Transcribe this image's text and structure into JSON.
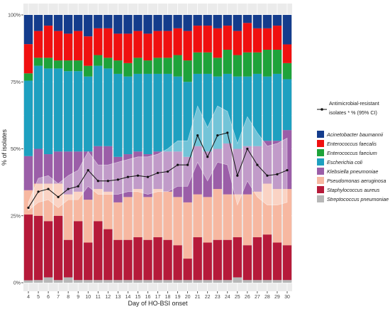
{
  "chart_data": {
    "type": "bar",
    "stacked": true,
    "xlabel": "Day of HO-BSI onset",
    "ylabel": "% of isolates",
    "ylim": [
      0,
      1
    ],
    "yticks": [
      "0%",
      "25%",
      "50%",
      "75%",
      "100%"
    ],
    "grid": true,
    "legend_position": "right",
    "categories": [
      "4",
      "5",
      "6",
      "7",
      "8",
      "9",
      "10",
      "11",
      "12",
      "13",
      "14",
      "15",
      "16",
      "17",
      "18",
      "19",
      "20",
      "21",
      "22",
      "23",
      "24",
      "25",
      "26",
      "27",
      "28",
      "29",
      "30"
    ],
    "series": [
      {
        "name": "Streptococcus pneumoniae",
        "color": "#b7b7b7",
        "values": [
          0.01,
          0.01,
          0.02,
          0.01,
          0.02,
          0.01,
          0.01,
          0.01,
          0.01,
          0.01,
          0.01,
          0.01,
          0.01,
          0.01,
          0.01,
          0.01,
          0.01,
          0.01,
          0.01,
          0.01,
          0.01,
          0.02,
          0.01,
          0.01,
          0.01,
          0.01,
          0.01
        ]
      },
      {
        "name": "Staphylococcus aureus",
        "color": "#b61a3a",
        "values": [
          0.27,
          0.24,
          0.21,
          0.24,
          0.14,
          0.22,
          0.14,
          0.22,
          0.19,
          0.15,
          0.15,
          0.16,
          0.15,
          0.16,
          0.15,
          0.13,
          0.08,
          0.16,
          0.14,
          0.15,
          0.15,
          0.15,
          0.13,
          0.16,
          0.17,
          0.14,
          0.13
        ]
      },
      {
        "name": "Pseudomonas aeruginosa",
        "color": "#f7b8a1",
        "values": [
          0.1,
          0.12,
          0.14,
          0.12,
          0.17,
          0.11,
          0.16,
          0.12,
          0.14,
          0.14,
          0.16,
          0.18,
          0.16,
          0.18,
          0.18,
          0.18,
          0.21,
          0.16,
          0.17,
          0.19,
          0.17,
          0.16,
          0.19,
          0.17,
          0.19,
          0.2,
          0.21
        ]
      },
      {
        "name": "Klebsiella pneumoniae",
        "color": "#9b5ea8",
        "values": [
          0.14,
          0.13,
          0.11,
          0.12,
          0.16,
          0.15,
          0.18,
          0.16,
          0.17,
          0.17,
          0.16,
          0.14,
          0.16,
          0.14,
          0.15,
          0.17,
          0.17,
          0.18,
          0.17,
          0.15,
          0.19,
          0.17,
          0.18,
          0.17,
          0.16,
          0.18,
          0.22
        ]
      },
      {
        "name": "Escherichia coli",
        "color": "#1ea0c0",
        "values": [
          0.31,
          0.31,
          0.32,
          0.31,
          0.3,
          0.3,
          0.28,
          0.3,
          0.29,
          0.31,
          0.29,
          0.29,
          0.3,
          0.29,
          0.29,
          0.28,
          0.28,
          0.27,
          0.29,
          0.27,
          0.26,
          0.27,
          0.26,
          0.27,
          0.24,
          0.25,
          0.19
        ]
      },
      {
        "name": "Enterococcus faecium",
        "color": "#1ea33a",
        "values": [
          0.03,
          0.03,
          0.04,
          0.03,
          0.04,
          0.04,
          0.04,
          0.04,
          0.04,
          0.05,
          0.05,
          0.06,
          0.05,
          0.06,
          0.06,
          0.08,
          0.08,
          0.08,
          0.08,
          0.07,
          0.09,
          0.08,
          0.09,
          0.08,
          0.1,
          0.09,
          0.06
        ]
      },
      {
        "name": "Enterococcus faecalis",
        "color": "#f01010",
        "values": [
          0.12,
          0.1,
          0.12,
          0.11,
          0.1,
          0.11,
          0.11,
          0.1,
          0.11,
          0.1,
          0.11,
          0.1,
          0.1,
          0.1,
          0.1,
          0.1,
          0.11,
          0.1,
          0.1,
          0.11,
          0.09,
          0.09,
          0.11,
          0.09,
          0.08,
          0.09,
          0.07
        ]
      },
      {
        "name": "Acinetobacter baumannii",
        "color": "#143c8c",
        "values": [
          0.12,
          0.06,
          0.04,
          0.06,
          0.07,
          0.06,
          0.08,
          0.05,
          0.05,
          0.07,
          0.07,
          0.06,
          0.07,
          0.06,
          0.06,
          0.05,
          0.06,
          0.04,
          0.04,
          0.05,
          0.04,
          0.06,
          0.03,
          0.05,
          0.05,
          0.04,
          0.11
        ]
      }
    ],
    "amr_line": {
      "name": "Antimicrobial-resistant isolates * % (95% CI)",
      "values": [
        0.28,
        0.34,
        0.35,
        0.32,
        0.35,
        0.36,
        0.42,
        0.38,
        0.38,
        0.385,
        0.395,
        0.4,
        0.395,
        0.41,
        0.415,
        0.44,
        0.44,
        0.55,
        0.47,
        0.55,
        0.56,
        0.4,
        0.5,
        0.44,
        0.4,
        0.405,
        0.42
      ],
      "ci_low": [
        0.27,
        0.3,
        0.31,
        0.28,
        0.31,
        0.31,
        0.36,
        0.33,
        0.33,
        0.33,
        0.34,
        0.34,
        0.33,
        0.34,
        0.34,
        0.36,
        0.36,
        0.45,
        0.38,
        0.45,
        0.44,
        0.29,
        0.38,
        0.32,
        0.29,
        0.29,
        0.3
      ],
      "ci_high": [
        0.3,
        0.39,
        0.4,
        0.37,
        0.4,
        0.42,
        0.49,
        0.44,
        0.44,
        0.45,
        0.46,
        0.47,
        0.47,
        0.48,
        0.5,
        0.53,
        0.53,
        0.66,
        0.58,
        0.66,
        0.64,
        0.52,
        0.62,
        0.56,
        0.51,
        0.52,
        0.54
      ]
    }
  }
}
